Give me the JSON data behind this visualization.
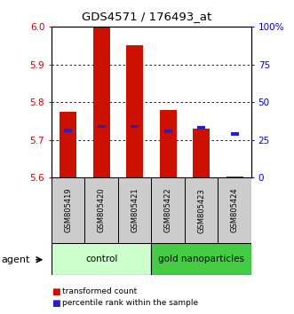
{
  "title": "GDS4571 / 176493_at",
  "samples": [
    "GSM805419",
    "GSM805420",
    "GSM805421",
    "GSM805422",
    "GSM805423",
    "GSM805424"
  ],
  "red_bar_bottom": [
    5.6,
    5.6,
    5.6,
    5.6,
    5.6,
    5.6
  ],
  "red_bar_top": [
    5.775,
    6.0,
    5.95,
    5.78,
    5.73,
    5.603
  ],
  "blue_marker": [
    5.725,
    5.735,
    5.735,
    5.722,
    5.732,
    5.715
  ],
  "ylim_left": [
    5.6,
    6.0
  ],
  "ylim_right": [
    0,
    100
  ],
  "yticks_left": [
    5.6,
    5.7,
    5.8,
    5.9,
    6.0
  ],
  "yticks_right": [
    0,
    25,
    50,
    75,
    100
  ],
  "ytick_labels_right": [
    "0",
    "25",
    "50",
    "75",
    "100%"
  ],
  "left_axis_color": "#cc0000",
  "right_axis_color": "#0000cc",
  "legend_red": "transformed count",
  "legend_blue": "percentile rank within the sample",
  "bar_color": "#cc1100",
  "blue_color": "#2222cc",
  "sample_bg": "#cccccc",
  "ctrl_color": "#ccffcc",
  "gold_color": "#44cc44",
  "agent_label": "agent"
}
